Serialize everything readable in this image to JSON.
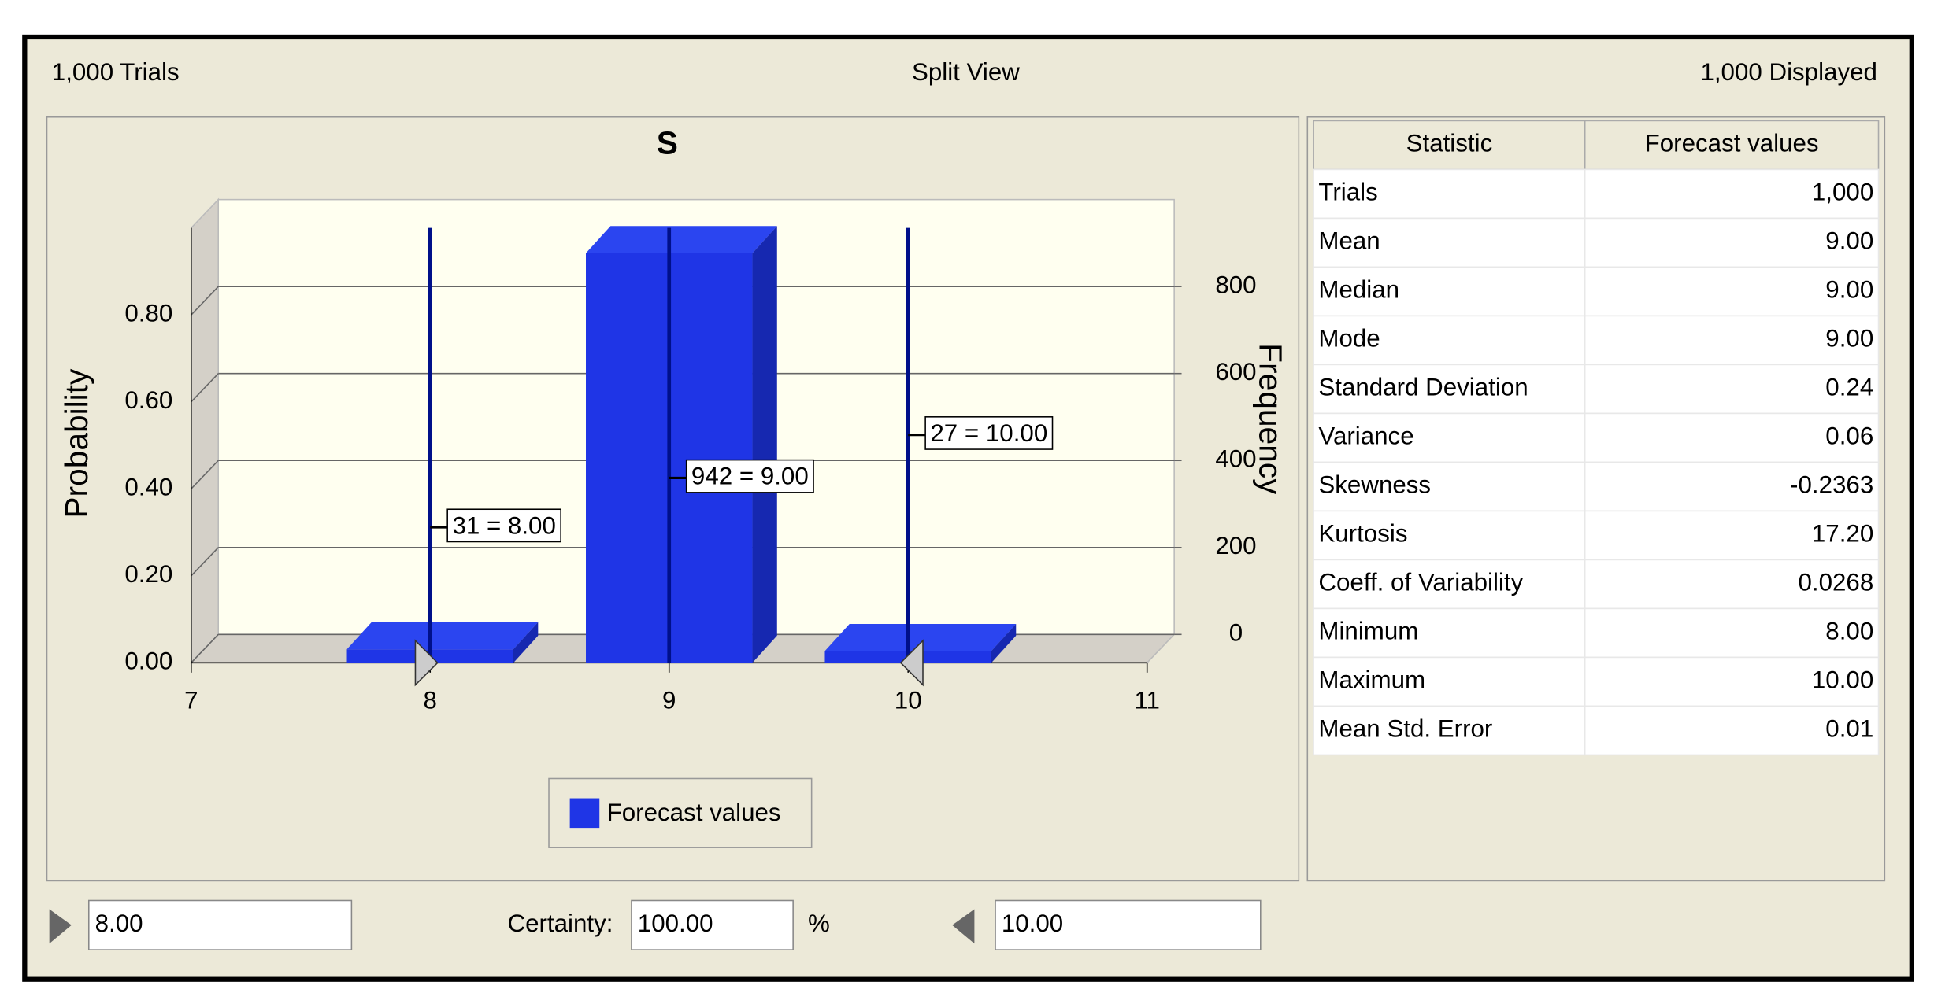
{
  "header": {
    "left": "1,000 Trials",
    "center": "Split View",
    "right": "1,000 Displayed"
  },
  "chart_data": {
    "type": "bar",
    "title": "S",
    "ylabel": "Probability",
    "y2label": "Frequency",
    "x": [
      8,
      9,
      10
    ],
    "series": [
      {
        "name": "Forecast values",
        "color": "#1f35e6",
        "axis": "y2",
        "values": [
          31,
          942,
          27
        ],
        "value_labels": [
          "31 = 8.00",
          "942 = 9.00",
          "27 = 10.00"
        ]
      }
    ],
    "xlim": [
      7,
      11
    ],
    "xticks": [
      7,
      8,
      9,
      10,
      11
    ],
    "ylim": [
      0,
      1
    ],
    "yticks": [
      {
        "value": 0,
        "label": "0.00"
      },
      {
        "value": 0.2,
        "label": "0.20"
      },
      {
        "value": 0.4,
        "label": "0.40"
      },
      {
        "value": 0.6,
        "label": "0.60"
      },
      {
        "value": 0.8,
        "label": "0.80"
      }
    ],
    "y2lim": [
      0,
      1000
    ],
    "y2ticks": [
      0,
      200,
      400,
      600,
      800
    ],
    "grid": true,
    "legend": "bottom"
  },
  "table": {
    "columns": [
      "Statistic",
      "Forecast values"
    ],
    "rows": [
      [
        "Trials",
        "1,000"
      ],
      [
        "Mean",
        "9.00"
      ],
      [
        "Median",
        "9.00"
      ],
      [
        "Mode",
        "9.00"
      ],
      [
        "Standard Deviation",
        "0.24"
      ],
      [
        "Variance",
        "0.06"
      ],
      [
        "Skewness",
        "-0.2363"
      ],
      [
        "Kurtosis",
        "17.20"
      ],
      [
        "Coeff. of Variability",
        "0.0268"
      ],
      [
        "Minimum",
        "8.00"
      ],
      [
        "Maximum",
        "10.00"
      ],
      [
        "Mean Std. Error",
        "0.01"
      ]
    ]
  },
  "footer": {
    "left_value": "8.00",
    "certainty_label": "Certainty:",
    "certainty_value": "100.00",
    "certainty_unit": "%",
    "right_value": "10.00"
  }
}
